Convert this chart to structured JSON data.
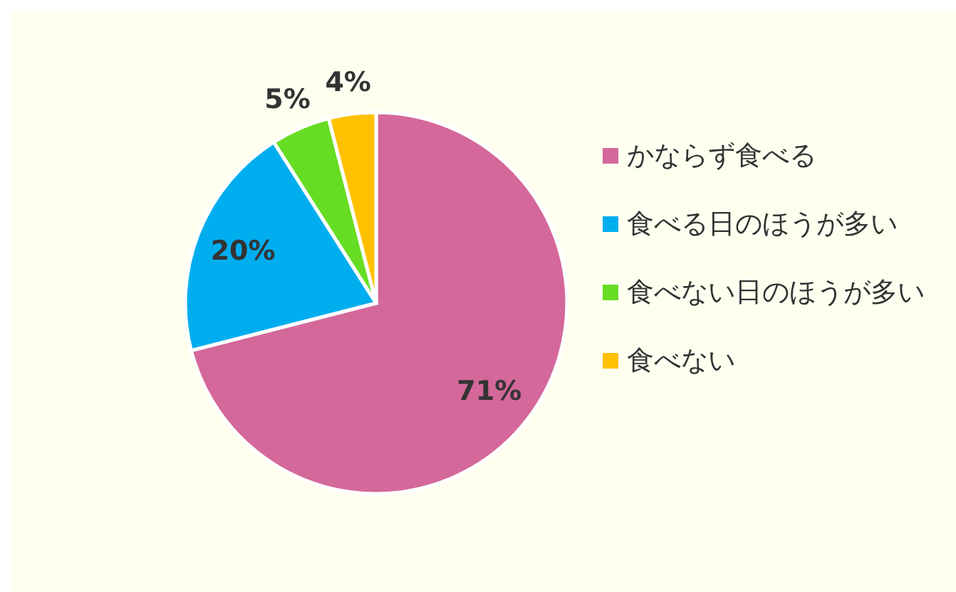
{
  "chart_data": {
    "type": "pie",
    "categories": [
      "かならず食べる",
      "食べる日のほうが多い",
      "食べない日のほうが多い",
      "食べない"
    ],
    "values": [
      71,
      20,
      5,
      4
    ],
    "colors": [
      "#d4689a",
      "#00aeef",
      "#66dd22",
      "#ffc000"
    ],
    "value_labels": [
      "71%",
      "20%",
      "5%",
      "4%"
    ],
    "legend": "right"
  }
}
